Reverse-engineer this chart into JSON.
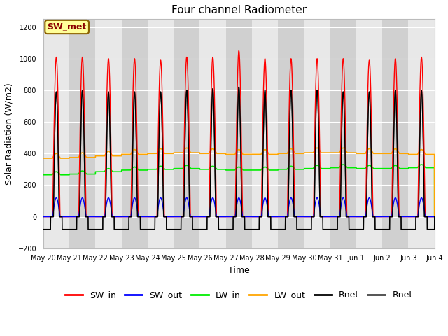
{
  "title": "Four channel Radiometer",
  "xlabel": "Time",
  "ylabel": "Solar Radiation (W/m2)",
  "ylim": [
    -200,
    1250
  ],
  "annotation_text": "SW_met",
  "annotation_color": "#8B0000",
  "annotation_bg": "#FFFF99",
  "annotation_border": "#8B6000",
  "bg_light": "#e8e8e8",
  "bg_dark": "#d0d0d0",
  "grid_color": "#ffffff",
  "sw_in_color": "#ff0000",
  "sw_out_color": "#0000ff",
  "lw_in_color": "#00ee00",
  "lw_out_color": "#ffa500",
  "rnet1_color": "#000000",
  "rnet2_color": "#444444",
  "tick_labels": [
    "May 20",
    "May 21",
    "May 22",
    "May 23",
    "May 24",
    "May 25",
    "May 26",
    "May 27",
    "May 28",
    "May 29",
    "May 30",
    "May 31",
    "Jun 1",
    "Jun 2",
    "Jun 3",
    "Jun 4"
  ],
  "sw_in_peaks": [
    1010,
    1010,
    1000,
    1000,
    990,
    1010,
    1010,
    1050,
    1000,
    1000,
    1000,
    1000,
    990,
    1000,
    1010
  ],
  "rnet_peaks": [
    790,
    800,
    790,
    790,
    790,
    800,
    810,
    820,
    800,
    800,
    800,
    790,
    790,
    800,
    800
  ],
  "rnet_night": -80,
  "lw_in_base": [
    265,
    270,
    285,
    295,
    300,
    305,
    300,
    295,
    295,
    300,
    305,
    310,
    305,
    305,
    310
  ],
  "lw_out_base": [
    370,
    375,
    385,
    395,
    400,
    405,
    400,
    395,
    395,
    400,
    405,
    405,
    400,
    400,
    395
  ],
  "lw_daily_amp": 20,
  "sw_out_peak": 120,
  "title_fontsize": 11,
  "axis_fontsize": 9,
  "tick_fontsize": 7,
  "legend_fontsize": 9
}
